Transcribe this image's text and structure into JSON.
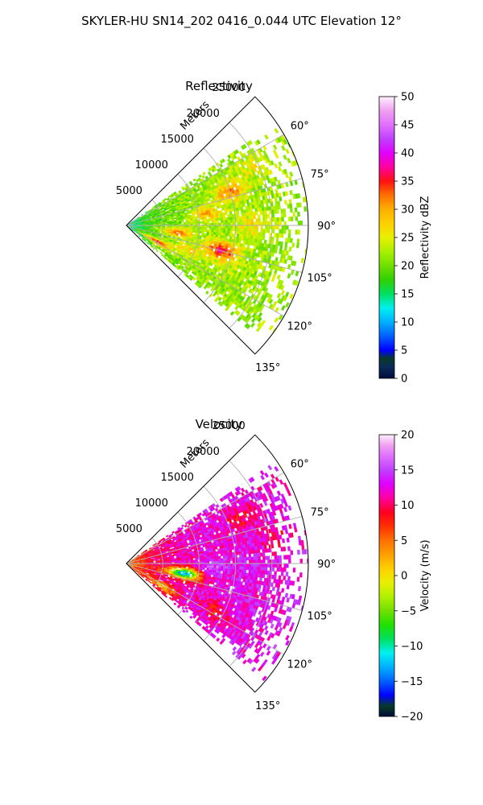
{
  "suptitle": "SKYLER-HU  SN14_202  0416_0.044 UTC Elevation 12°",
  "chart_data": [
    {
      "type": "heatmap",
      "projection": "polar-sector",
      "title": "Reflectivity",
      "radial_label": "Meters",
      "theta_range_deg": [
        45,
        135
      ],
      "r_max": 25000,
      "r_ticks": [
        5000,
        10000,
        15000,
        20000,
        25000
      ],
      "r_tick_labels": [
        "5000",
        "10000",
        "15000",
        "20000",
        "25000"
      ],
      "theta_ticks_deg": [
        60,
        75,
        90,
        105,
        120,
        135
      ],
      "theta_tick_labels": [
        "60°",
        "75°",
        "90°",
        "105°",
        "120°",
        "135°"
      ],
      "grid": true,
      "colorbar": {
        "label": "Reflectivity dBZ",
        "vmin": 0,
        "vmax": 50,
        "ticks": [
          0,
          5,
          10,
          15,
          20,
          25,
          30,
          35,
          40,
          45,
          50
        ],
        "tick_labels": [
          "0",
          "5",
          "10",
          "15",
          "20",
          "25",
          "30",
          "35",
          "40",
          "45",
          "50"
        ],
        "stops": [
          {
            "v": 0,
            "c": "#000d3a"
          },
          {
            "v": 2,
            "c": "#0a2a5a"
          },
          {
            "v": 3.5,
            "c": "#083a2a"
          },
          {
            "v": 5,
            "c": "#0000ff"
          },
          {
            "v": 7.5,
            "c": "#0060ff"
          },
          {
            "v": 10,
            "c": "#00b0ff"
          },
          {
            "v": 12.5,
            "c": "#00f0f0"
          },
          {
            "v": 15,
            "c": "#00e060"
          },
          {
            "v": 17.5,
            "c": "#30d000"
          },
          {
            "v": 20,
            "c": "#70e000"
          },
          {
            "v": 22.5,
            "c": "#a8f000"
          },
          {
            "v": 25,
            "c": "#e8f000"
          },
          {
            "v": 27.5,
            "c": "#ffd000"
          },
          {
            "v": 30,
            "c": "#ffb000"
          },
          {
            "v": 32.5,
            "c": "#ff7000"
          },
          {
            "v": 35,
            "c": "#ff1010"
          },
          {
            "v": 37.5,
            "c": "#ff00a0"
          },
          {
            "v": 40,
            "c": "#e000ff"
          },
          {
            "v": 42.5,
            "c": "#c040ff"
          },
          {
            "v": 45,
            "c": "#e070ff"
          },
          {
            "v": 47.5,
            "c": "#f0a0f0"
          },
          {
            "v": 50,
            "c": "#fff0ff"
          }
        ]
      },
      "field": {
        "base": 22,
        "near_base": 13,
        "noise": 3,
        "coverage": "sector 55°–130°, sparse beyond ~20000 m",
        "cells": [
          {
            "theta": 72,
            "r": 15000,
            "value": 32
          },
          {
            "theta": 82,
            "r": 11000,
            "value": 30
          },
          {
            "theta": 98,
            "r": 7000,
            "value": 33
          },
          {
            "theta": 105,
            "r": 13500,
            "value": 37
          },
          {
            "theta": 112,
            "r": 9000,
            "value": 28
          },
          {
            "theta": 118,
            "r": 4500,
            "value": 36
          },
          {
            "theta": 90,
            "r": 17500,
            "value": 27
          },
          {
            "theta": 64,
            "r": 19500,
            "value": 26
          }
        ]
      }
    },
    {
      "type": "heatmap",
      "projection": "polar-sector",
      "title": "Velocity",
      "radial_label": "Meters",
      "theta_range_deg": [
        45,
        135
      ],
      "r_max": 25000,
      "r_ticks": [
        5000,
        10000,
        15000,
        20000,
        25000
      ],
      "r_tick_labels": [
        "5000",
        "10000",
        "15000",
        "20000",
        "25000"
      ],
      "theta_ticks_deg": [
        60,
        75,
        90,
        105,
        120,
        135
      ],
      "theta_tick_labels": [
        "60°",
        "75°",
        "90°",
        "105°",
        "120°",
        "135°"
      ],
      "grid": true,
      "colorbar": {
        "label": "Velocity (m/s)",
        "vmin": -20,
        "vmax": 20,
        "ticks": [
          -20,
          -15,
          -10,
          -5,
          0,
          5,
          10,
          15,
          20
        ],
        "tick_labels": [
          "−20",
          "−15",
          "−10",
          "−5",
          "0",
          "5",
          "10",
          "15",
          "20"
        ],
        "stops": [
          {
            "v": -20,
            "c": "#000d3a"
          },
          {
            "v": -18.5,
            "c": "#083a2a"
          },
          {
            "v": -17,
            "c": "#0000ff"
          },
          {
            "v": -15,
            "c": "#0060ff"
          },
          {
            "v": -13,
            "c": "#00b0ff"
          },
          {
            "v": -11,
            "c": "#00f0f0"
          },
          {
            "v": -9,
            "c": "#00e060"
          },
          {
            "v": -7,
            "c": "#20e000"
          },
          {
            "v": -5,
            "c": "#70e000"
          },
          {
            "v": -3,
            "c": "#b0f000"
          },
          {
            "v": -1,
            "c": "#e8f000"
          },
          {
            "v": 1,
            "c": "#ffd000"
          },
          {
            "v": 3,
            "c": "#ffa000"
          },
          {
            "v": 5,
            "c": "#ff7000"
          },
          {
            "v": 7,
            "c": "#ff3000"
          },
          {
            "v": 9,
            "c": "#ff0020"
          },
          {
            "v": 11,
            "c": "#ff00a0"
          },
          {
            "v": 13,
            "c": "#e000ff"
          },
          {
            "v": 15,
            "c": "#c040ff"
          },
          {
            "v": 17,
            "c": "#e070ff"
          },
          {
            "v": 18.5,
            "c": "#f0a0f0"
          },
          {
            "v": 20,
            "c": "#fff0ff"
          }
        ]
      },
      "field": {
        "base": 13,
        "near_base": 3,
        "noise": 2.5,
        "coverage": "sector 55°–130°, sparse beyond ~20000 m",
        "cells": [
          {
            "theta": 68,
            "r": 17000,
            "value": 9
          },
          {
            "theta": 100,
            "r": 8000,
            "value": -12
          },
          {
            "theta": 93,
            "r": 12000,
            "value": 16
          },
          {
            "theta": 118,
            "r": 14000,
            "value": 9
          },
          {
            "theta": 122,
            "r": 6000,
            "value": 4
          },
          {
            "theta": 80,
            "r": 21000,
            "value": 10
          }
        ]
      }
    }
  ]
}
